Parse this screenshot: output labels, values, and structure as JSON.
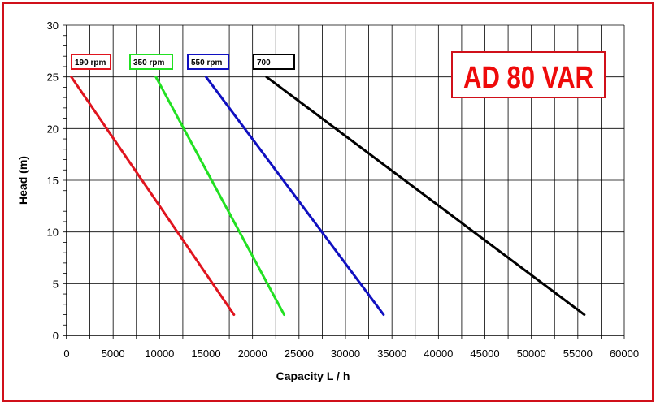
{
  "chart_data": {
    "type": "line",
    "title": "AD 80 VAR",
    "xlabel": "Capacity  L / h",
    "ylabel": "Head (m)",
    "xlim": [
      0,
      60000
    ],
    "ylim": [
      0,
      30
    ],
    "xticks": [
      0,
      5000,
      10000,
      15000,
      20000,
      25000,
      30000,
      35000,
      40000,
      45000,
      50000,
      55000,
      60000
    ],
    "yticks": [
      0,
      5,
      10,
      15,
      20,
      25,
      30
    ],
    "grid": true,
    "series": [
      {
        "name": "190 rpm",
        "color": "#e0141e",
        "x": [
          500,
          18000
        ],
        "y": [
          25,
          2
        ]
      },
      {
        "name": "350 rpm",
        "color": "#22e022",
        "x": [
          9600,
          23400
        ],
        "y": [
          25,
          2
        ]
      },
      {
        "name": "550  rpm",
        "color": "#1010c0",
        "x": [
          15000,
          34100
        ],
        "y": [
          25,
          2
        ]
      },
      {
        "name": "700",
        "color": "#000000",
        "x": [
          21500,
          55700
        ],
        "y": [
          25,
          2
        ]
      }
    ]
  }
}
